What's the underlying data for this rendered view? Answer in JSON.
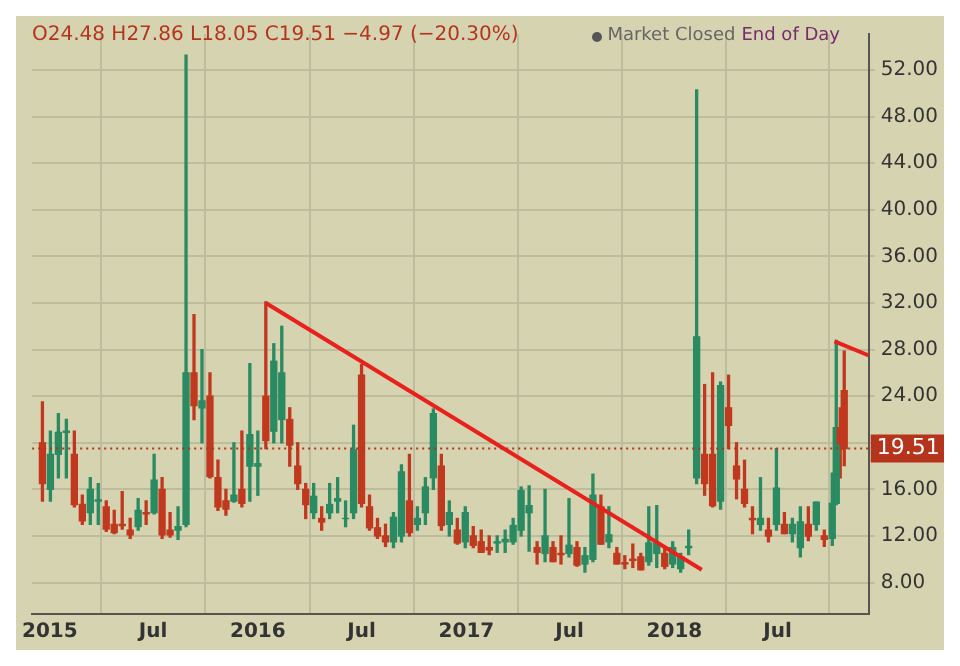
{
  "chart_data": {
    "type": "candlestick",
    "annotations": [
      "O24.48 H27.86 L18.05 C19.51 −4.97 (−20.30%)",
      "Market Closed",
      "End of Day"
    ],
    "x": [
      "2014-12-19",
      "2015-01-02",
      "2015-01-16",
      "2015-01-30",
      "2015-02-13",
      "2015-02-27",
      "2015-03-13",
      "2015-03-27",
      "2015-04-10",
      "2015-04-24",
      "2015-05-08",
      "2015-05-22",
      "2015-06-05",
      "2015-06-19",
      "2015-07-03",
      "2015-07-17",
      "2015-07-31",
      "2015-08-14",
      "2015-08-28",
      "2015-09-11",
      "2015-09-25",
      "2015-10-09",
      "2015-10-23",
      "2015-11-06",
      "2015-11-20",
      "2015-12-04",
      "2015-12-18",
      "2016-01-01",
      "2016-01-15",
      "2016-01-29",
      "2016-02-12",
      "2016-02-26",
      "2016-03-11",
      "2016-03-25",
      "2016-04-08",
      "2016-04-22",
      "2016-05-06",
      "2016-05-20",
      "2016-06-03",
      "2016-06-17",
      "2016-07-01",
      "2016-07-15",
      "2016-07-29",
      "2016-08-12",
      "2016-08-26",
      "2016-09-09",
      "2016-09-23",
      "2016-10-07",
      "2016-10-21",
      "2016-11-04",
      "2016-11-18",
      "2016-12-02",
      "2016-12-16",
      "2016-12-30",
      "2017-01-13",
      "2017-01-27",
      "2017-02-10",
      "2017-02-24",
      "2017-03-10",
      "2017-03-24",
      "2017-04-07",
      "2017-04-21",
      "2017-05-05",
      "2017-05-19",
      "2017-06-02",
      "2017-06-16",
      "2017-06-30",
      "2017-07-14",
      "2017-07-28",
      "2017-08-11",
      "2017-08-25",
      "2017-09-08",
      "2017-09-22",
      "2017-10-06",
      "2017-10-20",
      "2017-11-03",
      "2017-11-17",
      "2017-12-01",
      "2017-12-15",
      "2017-12-29",
      "2018-01-12",
      "2018-01-26",
      "2018-02-09",
      "2018-02-23",
      "2018-03-09",
      "2018-03-23",
      "2018-04-06",
      "2018-04-20",
      "2018-05-04",
      "2018-05-18",
      "2018-06-01",
      "2018-06-15",
      "2018-06-29",
      "2018-07-13",
      "2018-07-27",
      "2018-08-10",
      "2018-08-24",
      "2018-09-07",
      "2018-09-21",
      "2018-10-05",
      "2018-10-12",
      "2018-10-19",
      "2018-10-26"
    ],
    "ohlc": [
      [
        20,
        23.5,
        15,
        16.5
      ],
      [
        16,
        21,
        15,
        19
      ],
      [
        19,
        22.5,
        17,
        20.9
      ],
      [
        20.9,
        22,
        17,
        21
      ],
      [
        19,
        21,
        14.5,
        14.7
      ],
      [
        14.7,
        15.5,
        13,
        13.3
      ],
      [
        14,
        17,
        13,
        16
      ],
      [
        15,
        16.5,
        13,
        15.1
      ],
      [
        14.5,
        15,
        12.4,
        12.6
      ],
      [
        13,
        14.2,
        12.2,
        12.3
      ],
      [
        13,
        15.8,
        12.6,
        12.9
      ],
      [
        12.5,
        13.5,
        11.8,
        12.1
      ],
      [
        12.8,
        15.2,
        12.5,
        14.2
      ],
      [
        14,
        15,
        13,
        13.9
      ],
      [
        14,
        19,
        13.9,
        16.8
      ],
      [
        16,
        17,
        11.8,
        12.1
      ],
      [
        12.5,
        14,
        11.9,
        12.1
      ],
      [
        12.5,
        14.5,
        11.7,
        12.8
      ],
      [
        13,
        53.29,
        12.8,
        26
      ],
      [
        26,
        31,
        22,
        23.2
      ],
      [
        23,
        28,
        20,
        23.6
      ],
      [
        24,
        26,
        17,
        17.1
      ],
      [
        17,
        18.5,
        14.2,
        14.5
      ],
      [
        15,
        16,
        13.8,
        14.3
      ],
      [
        15,
        20,
        14.9,
        15.5
      ],
      [
        16,
        21,
        14.5,
        14.8
      ],
      [
        18,
        26.8,
        15,
        20.7
      ],
      [
        18,
        21,
        15.5,
        18.2
      ],
      [
        24,
        32.1,
        19.5,
        20.2
      ],
      [
        21,
        28.5,
        20,
        27
      ],
      [
        22,
        30,
        20,
        26
      ],
      [
        22,
        23,
        18,
        19.8
      ],
      [
        18,
        20,
        16,
        16.5
      ],
      [
        16,
        16.5,
        13.5,
        14.7
      ],
      [
        14,
        16.5,
        13.5,
        15.4
      ],
      [
        13.5,
        14.5,
        12.5,
        13.2
      ],
      [
        14,
        16.5,
        13.5,
        14.7
      ],
      [
        15,
        17,
        14,
        15.2
      ],
      [
        13.5,
        15,
        12.8,
        13.5
      ],
      [
        14,
        21.5,
        13.5,
        19.4
      ],
      [
        25.8,
        26.7,
        14.5,
        14.8
      ],
      [
        14.5,
        15.5,
        12.5,
        12.7
      ],
      [
        12.7,
        13.5,
        11.8,
        12
      ],
      [
        12,
        13,
        11.1,
        11.5
      ],
      [
        11.5,
        14,
        11,
        13.6
      ],
      [
        12,
        18.1,
        11.5,
        17.5
      ],
      [
        15,
        19,
        12,
        12.3
      ],
      [
        13,
        14.5,
        12.5,
        13.5
      ],
      [
        14,
        17,
        13,
        16.2
      ],
      [
        17,
        22.9,
        16,
        22.5
      ],
      [
        18,
        19,
        12.5,
        12.9
      ],
      [
        13,
        15,
        12,
        14
      ],
      [
        12.5,
        13.5,
        11.3,
        11.4
      ],
      [
        11.5,
        14.5,
        11,
        14
      ],
      [
        12,
        12.8,
        11,
        11.2
      ],
      [
        11.5,
        12.5,
        10.6,
        10.6
      ],
      [
        11,
        12,
        10.4,
        10.8
      ],
      [
        11.4,
        12,
        10.6,
        11.5
      ],
      [
        11.5,
        12.5,
        10.6,
        11.7
      ],
      [
        11.5,
        13.5,
        11.3,
        12.9
      ],
      [
        12.5,
        16.2,
        12,
        15.9
      ],
      [
        14,
        16.3,
        10.7,
        14.6
      ],
      [
        11,
        11.5,
        9.6,
        10.6
      ],
      [
        10.5,
        16,
        9.8,
        12
      ],
      [
        11,
        11.5,
        9.8,
        9.8
      ],
      [
        10.5,
        12,
        9.6,
        10.4
      ],
      [
        10.5,
        15.2,
        10.2,
        11.2
      ],
      [
        11,
        11.5,
        9.4,
        9.5
      ],
      [
        9.6,
        11,
        8.9,
        10.3
      ],
      [
        10,
        17.3,
        9.8,
        15.5
      ],
      [
        14.5,
        15.5,
        11.3,
        11.3
      ],
      [
        11.5,
        14.5,
        11,
        12.1
      ],
      [
        10.5,
        11,
        9.6,
        9.6
      ],
      [
        9.7,
        10.3,
        9.2,
        9.6
      ],
      [
        10,
        11.3,
        9.3,
        9.9
      ],
      [
        10.2,
        10.5,
        9.1,
        9.1
      ],
      [
        9.8,
        14.5,
        9.5,
        11.4
      ],
      [
        10.5,
        14.6,
        9.3,
        11.4
      ],
      [
        10.5,
        11,
        9.2,
        9.4
      ],
      [
        9.6,
        11.5,
        9.3,
        11
      ],
      [
        9.2,
        10.5,
        8.9,
        10.2
      ],
      [
        11,
        12.5,
        10.4,
        11.1
      ],
      [
        17,
        50.3,
        16.5,
        29.1
      ],
      [
        19,
        25,
        15.5,
        16.5
      ],
      [
        19,
        26,
        14.5,
        14.6
      ],
      [
        15,
        25.2,
        14.3,
        24.9
      ],
      [
        23,
        25.8,
        19.5,
        21.5
      ],
      [
        18,
        20,
        15.2,
        16.9
      ],
      [
        16,
        18.5,
        14.5,
        14.8
      ],
      [
        13.5,
        14.5,
        12.2,
        13.4
      ],
      [
        13,
        17,
        12.5,
        13.5
      ],
      [
        12.5,
        13.5,
        11.5,
        11.98
      ],
      [
        13,
        19.5,
        12.5,
        16.1
      ],
      [
        13,
        14,
        12.2,
        12.2
      ],
      [
        12.2,
        13.5,
        11.5,
        13
      ],
      [
        11,
        14.5,
        10.2,
        13.2
      ],
      [
        13,
        14.5,
        11.6,
        11.99
      ],
      [
        13,
        14.9,
        12.5,
        14.9
      ],
      [
        12,
        12.5,
        11.1,
        11.7
      ],
      [
        11.8,
        17.4,
        11.2,
        14.8
      ],
      [
        14.8,
        28.8,
        14.7,
        21.3
      ],
      [
        21.3,
        23,
        17,
        19.9
      ],
      [
        24.48,
        27.86,
        18.05,
        19.51
      ]
    ],
    "colors": [
      "#c0391f",
      "#2a8a62",
      "#2a8a62",
      "#2a8a62",
      "#c0391f",
      "#c0391f",
      "#2a8a62",
      "#2a8a62",
      "#c0391f",
      "#c0391f",
      "#c0391f",
      "#c0391f",
      "#2a8a62",
      "#c0391f",
      "#2a8a62",
      "#c0391f",
      "#c0391f",
      "#2a8a62",
      "#2a8a62",
      "#c0391f",
      "#2a8a62",
      "#c0391f",
      "#c0391f",
      "#c0391f",
      "#2a8a62",
      "#c0391f",
      "#2a8a62",
      "#2a8a62",
      "#c0391f",
      "#2a8a62",
      "#2a8a62",
      "#c0391f",
      "#c0391f",
      "#c0391f",
      "#2a8a62",
      "#c0391f",
      "#2a8a62",
      "#2a8a62",
      "#2a8a62",
      "#2a8a62",
      "#c0391f",
      "#c0391f",
      "#c0391f",
      "#c0391f",
      "#2a8a62",
      "#2a8a62",
      "#c0391f",
      "#2a8a62",
      "#2a8a62",
      "#2a8a62",
      "#c0391f",
      "#2a8a62",
      "#c0391f",
      "#2a8a62",
      "#c0391f",
      "#c0391f",
      "#c0391f",
      "#2a8a62",
      "#2a8a62",
      "#2a8a62",
      "#2a8a62",
      "#2a8a62",
      "#c0391f",
      "#2a8a62",
      "#c0391f",
      "#c0391f",
      "#2a8a62",
      "#c0391f",
      "#2a8a62",
      "#2a8a62",
      "#c0391f",
      "#2a8a62",
      "#c0391f",
      "#c0391f",
      "#c0391f",
      "#c0391f",
      "#2a8a62",
      "#2a8a62",
      "#c0391f",
      "#2a8a62",
      "#2a8a62",
      "#2a8a62",
      "#2a8a62",
      "#c0391f",
      "#c0391f",
      "#2a8a62",
      "#c0391f",
      "#c0391f",
      "#c0391f",
      "#c0391f",
      "#2a8a62",
      "#c0391f",
      "#2a8a62",
      "#c0391f",
      "#2a8a62",
      "#2a8a62",
      "#c0391f",
      "#2a8a62",
      "#c0391f",
      "#2a8a62",
      "#2a8a62",
      "#c0391f",
      "#c0391f"
    ],
    "series": [
      {
        "type": "line",
        "color": "#e8211c",
        "x": [
          "2016-01-15",
          "2018-02-18"
        ],
        "values": [
          32,
          9.1
        ]
      },
      {
        "type": "line",
        "color": "#e8211c",
        "x": [
          "2018-10-09",
          "2018-12-08"
        ],
        "values": [
          28.7,
          27.5
        ]
      }
    ],
    "ref_lines": [
      {
        "axis": "y",
        "value": 19.51,
        "label": "19.51",
        "color": "#b5341c",
        "line_style": "dotted"
      }
    ],
    "xlim": [
      "2014-12-01",
      "2018-12-08"
    ],
    "xticks": [
      {
        "value": "2015-01-01",
        "label": "2015"
      },
      {
        "value": "2015-07-01",
        "label": "Jul"
      },
      {
        "value": "2016-01-01",
        "label": "2016"
      },
      {
        "value": "2016-07-01",
        "label": "Jul"
      },
      {
        "value": "2017-01-01",
        "label": "2017"
      },
      {
        "value": "2017-07-01",
        "label": "Jul"
      },
      {
        "value": "2018-01-01",
        "label": "2018"
      },
      {
        "value": "2018-07-01",
        "label": "Jul"
      }
    ],
    "ylim": [
      5.3,
      55.1
    ],
    "yticks": [
      {
        "value": 8,
        "label": "8.00"
      },
      {
        "value": 12,
        "label": "12.00"
      },
      {
        "value": 16,
        "label": "16.00"
      },
      {
        "value": 20,
        "label": null
      },
      {
        "value": 24,
        "label": "24.00"
      },
      {
        "value": 28,
        "label": "28.00"
      },
      {
        "value": 32,
        "label": "32.00"
      },
      {
        "value": 36,
        "label": "36.00"
      },
      {
        "value": 40,
        "label": "40.00"
      },
      {
        "value": 44,
        "label": "44.00"
      },
      {
        "value": 48,
        "label": "48.00"
      },
      {
        "value": 52,
        "label": "52.00"
      }
    ],
    "grid": true,
    "legend": false
  }
}
